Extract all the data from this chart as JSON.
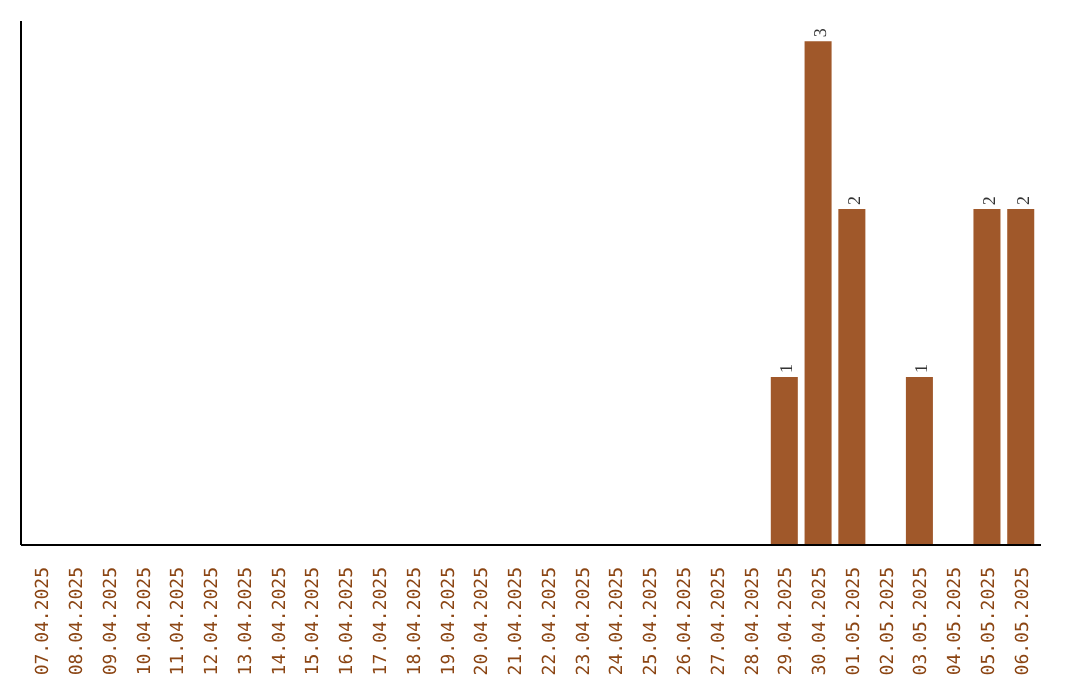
{
  "chart_data": {
    "type": "bar",
    "categories": [
      "07.04.2025",
      "08.04.2025",
      "09.04.2025",
      "10.04.2025",
      "11.04.2025",
      "12.04.2025",
      "13.04.2025",
      "14.04.2025",
      "15.04.2025",
      "16.04.2025",
      "17.04.2025",
      "18.04.2025",
      "19.04.2025",
      "20.04.2025",
      "21.04.2025",
      "22.04.2025",
      "23.04.2025",
      "24.04.2025",
      "25.04.2025",
      "26.04.2025",
      "27.04.2025",
      "28.04.2025",
      "29.04.2025",
      "30.04.2025",
      "01.05.2025",
      "02.05.2025",
      "03.05.2025",
      "04.05.2025",
      "05.05.2025",
      "06.05.2025"
    ],
    "values": [
      null,
      null,
      null,
      null,
      null,
      null,
      null,
      null,
      null,
      null,
      null,
      null,
      null,
      null,
      null,
      null,
      null,
      null,
      null,
      null,
      null,
      null,
      1,
      3,
      2,
      null,
      1,
      null,
      2,
      2
    ],
    "data_labels": true,
    "color": "#a0582a"
  }
}
